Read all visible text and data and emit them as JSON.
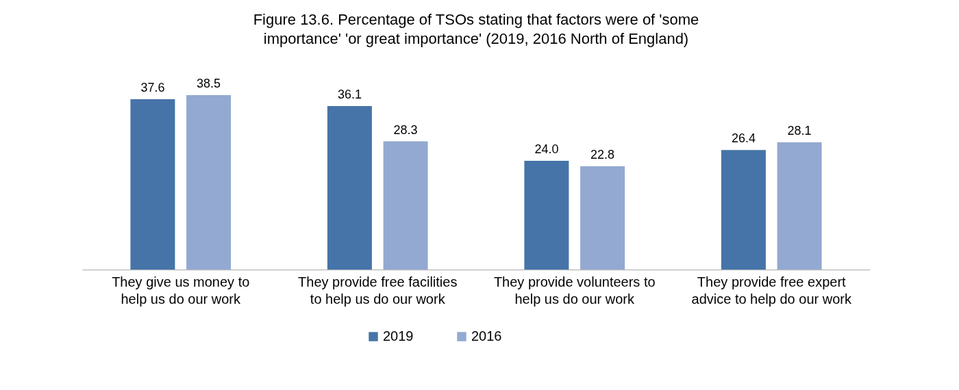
{
  "chart_data": {
    "type": "bar",
    "title": "Figure 13.6.    Percentage of TSOs stating that factors were of 'some importance' 'or great importance' (2019, 2016 North of England)",
    "categories": [
      "They give us money to\nhelp us do our work",
      "They provide free facilities\nto help us do our work",
      "They provide volunteers to\nhelp us do our work",
      "They provide free expert\nadvice to help do our work"
    ],
    "series": [
      {
        "name": "2019",
        "color": "#4674a8",
        "values": [
          37.6,
          36.1,
          24.0,
          26.4
        ],
        "value_labels": [
          "37.6",
          "36.1",
          "24.0",
          "26.4"
        ]
      },
      {
        "name": "2016",
        "color": "#93a9d1",
        "values": [
          38.5,
          28.3,
          22.8,
          28.1
        ],
        "value_labels": [
          "38.5",
          "28.3",
          "22.8",
          "28.1"
        ]
      }
    ],
    "legend": "bottom",
    "grid": false
  }
}
